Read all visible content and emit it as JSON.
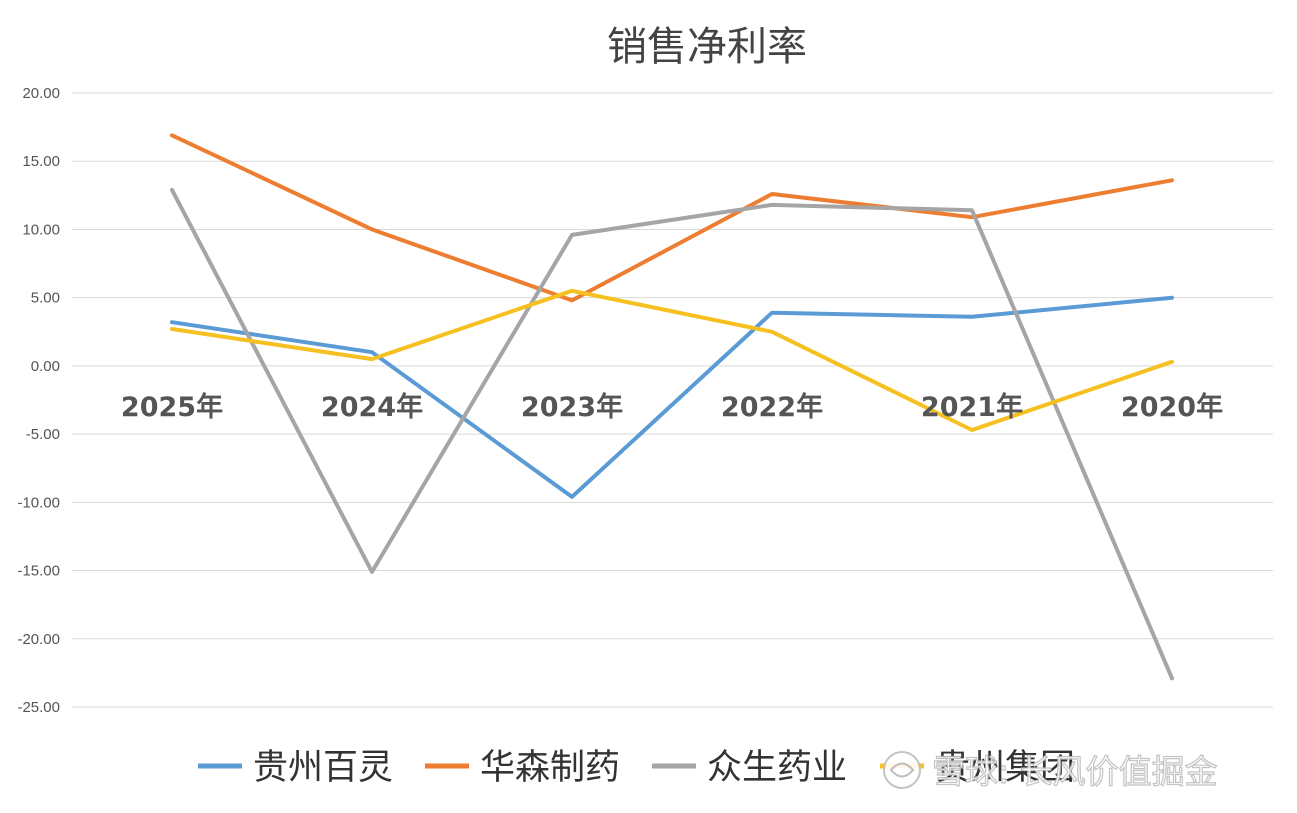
{
  "chart_data": {
    "type": "line",
    "title": "销售净利率",
    "categories": [
      "2025年",
      "2024年",
      "2023年",
      "2022年",
      "2021年",
      "2020年"
    ],
    "ylim": [
      -25,
      20
    ],
    "yticks": [
      "20.00",
      "15.00",
      "10.00",
      "5.00",
      "0.00",
      "-5.00",
      "-10.00",
      "-15.00",
      "-20.00",
      "-25.00"
    ],
    "grid": true,
    "legend_position": "bottom",
    "series": [
      {
        "name": "贵州百灵",
        "color": "#5b9bd5",
        "values": [
          3.2,
          1.0,
          -9.6,
          3.9,
          3.6,
          5.0
        ]
      },
      {
        "name": "华森制药",
        "color": "#ed7d31",
        "values": [
          16.9,
          10.0,
          4.8,
          12.6,
          10.9,
          13.6
        ]
      },
      {
        "name": "众生药业",
        "color": "#a5a5a5",
        "values": [
          12.9,
          -15.1,
          9.6,
          11.8,
          11.4,
          -22.9
        ]
      },
      {
        "name": "贵州集团",
        "color": "#f5c020",
        "values": [
          2.7,
          0.5,
          5.5,
          2.5,
          -4.7,
          0.3
        ]
      }
    ]
  },
  "watermark": {
    "text": "雪球: 长风价值掘金",
    "icon": "snowball-logo-icon"
  }
}
